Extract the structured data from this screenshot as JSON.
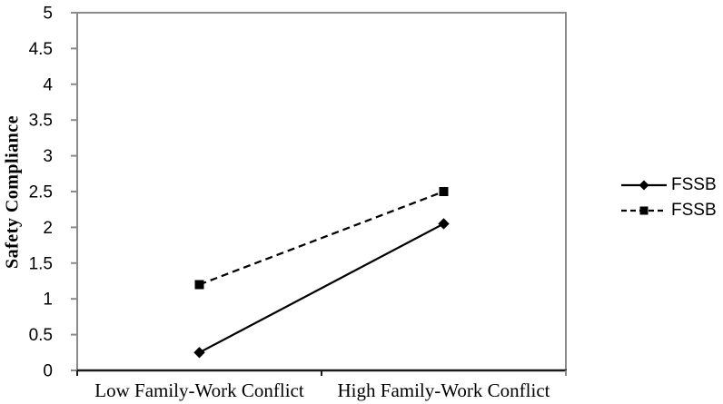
{
  "chart_data": {
    "type": "line",
    "title": "",
    "xlabel": "",
    "ylabel": "Safety Compliance",
    "categories": [
      "Low Family-Work Conflict",
      "High Family-Work Conflict"
    ],
    "series": [
      {
        "name": "FSSB",
        "values": [
          0.25,
          2.05
        ],
        "line_style": "solid",
        "marker": "diamond",
        "color": "#000000"
      },
      {
        "name": "FSSB",
        "values": [
          1.2,
          2.5
        ],
        "line_style": "dashed",
        "marker": "square",
        "color": "#000000"
      }
    ],
    "ylim": [
      0,
      5
    ],
    "ytick_step": 0.5,
    "yticks": [
      "0",
      "0.5",
      "1",
      "1.5",
      "2",
      "2.5",
      "3",
      "3.5",
      "4",
      "4.5",
      "5"
    ],
    "grid": "off",
    "legend_position": "right-outside",
    "colors": {
      "axis_frame": "#8a8a8a",
      "bottom_axis": "#1a1a1a",
      "series": "#000000",
      "background": "#ffffff"
    }
  }
}
